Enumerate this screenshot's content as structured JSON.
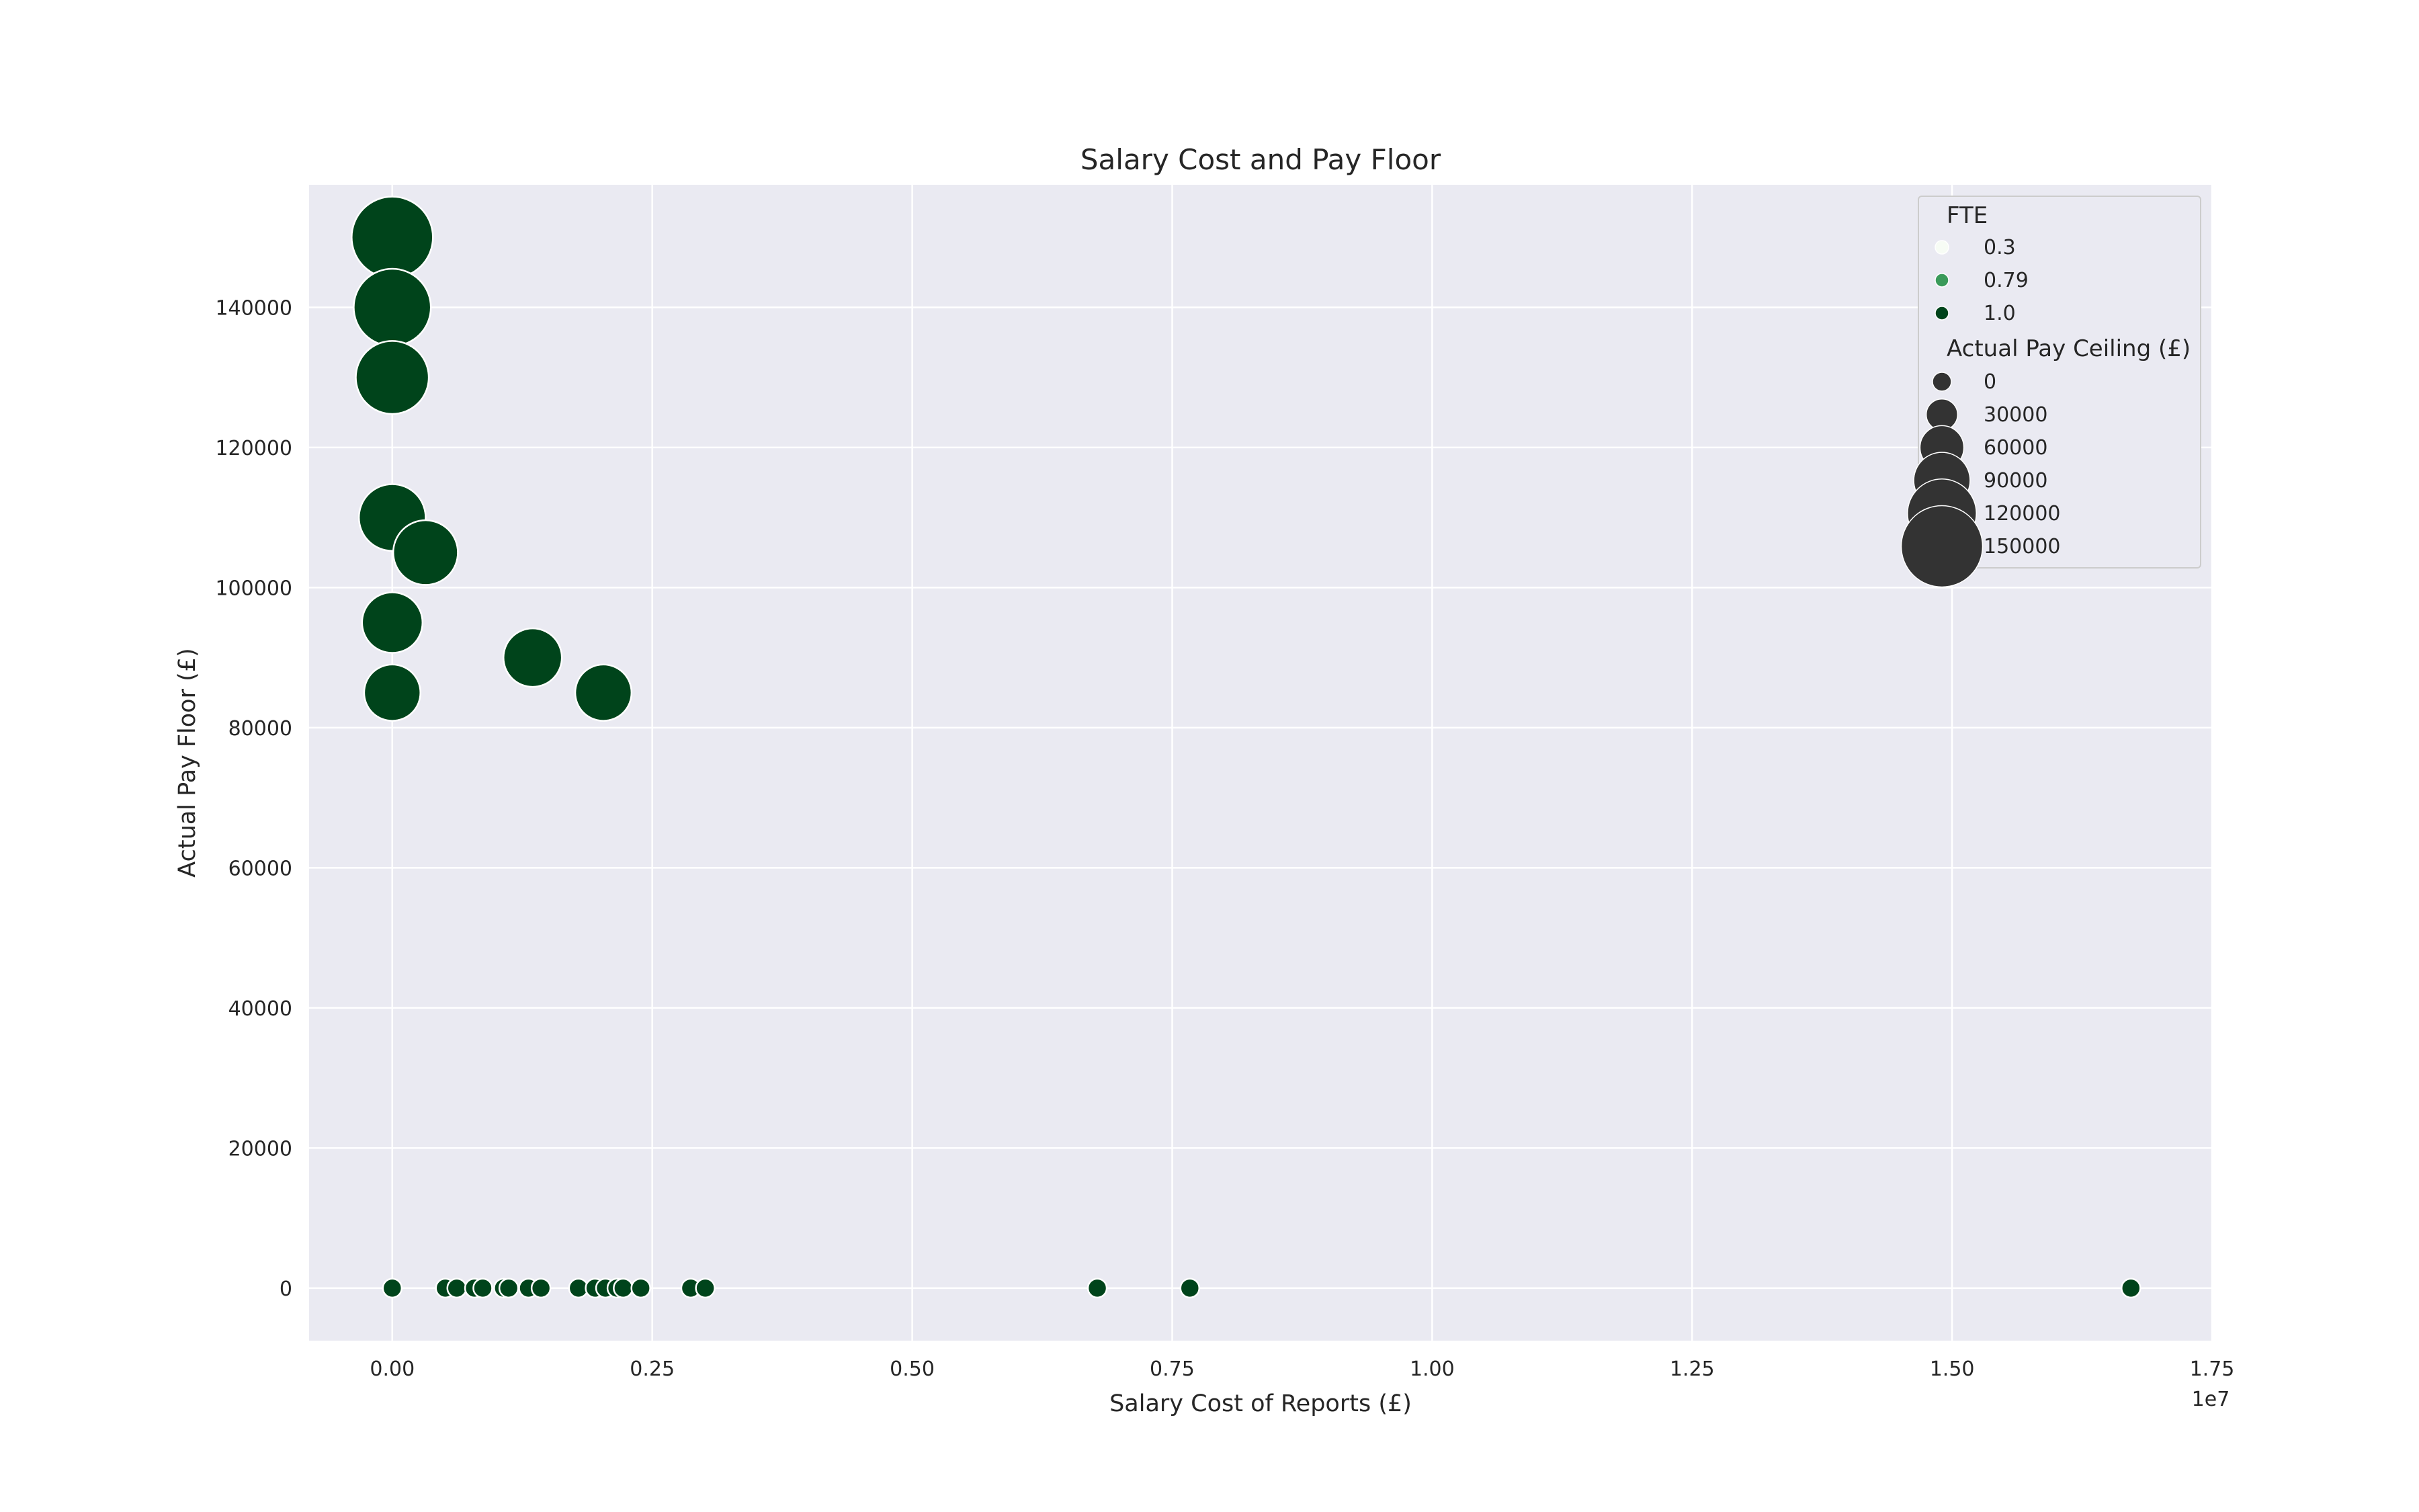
{
  "chart_data": {
    "type": "scatter",
    "title": "Salary Cost and Pay Floor",
    "xlabel": "Salary Cost of Reports (£)",
    "ylabel": "Actual Pay Floor (£)",
    "x_offset_label": "1e7",
    "xlim": [
      -800000,
      17500000
    ],
    "ylim": [
      -7500,
      157500
    ],
    "x_ticks": [
      0,
      2500000,
      5000000,
      7500000,
      10000000,
      12500000,
      15000000,
      17500000
    ],
    "x_tick_labels": [
      "0.00",
      "0.25",
      "0.50",
      "0.75",
      "1.00",
      "1.25",
      "1.50",
      "1.75"
    ],
    "y_ticks": [
      0,
      20000,
      40000,
      60000,
      80000,
      100000,
      120000,
      140000
    ],
    "y_tick_labels": [
      "0",
      "20000",
      "40000",
      "60000",
      "80000",
      "100000",
      "120000",
      "140000"
    ],
    "grid": true,
    "background": "#eaeaf2",
    "point_color": "#00441b",
    "legend": {
      "placement": "top-right",
      "hue_title": "FTE",
      "hue_entries": [
        {
          "label": "0.3",
          "color": "#f7fcf5"
        },
        {
          "label": "0.79",
          "color": "#3a9a5a"
        },
        {
          "label": "1.0",
          "color": "#00441b"
        }
      ],
      "size_title": "Actual Pay Ceiling (£)",
      "size_entries": [
        {
          "label": "0",
          "value": 0
        },
        {
          "label": "30000",
          "value": 30000
        },
        {
          "label": "60000",
          "value": 60000
        },
        {
          "label": "90000",
          "value": 90000
        },
        {
          "label": "120000",
          "value": 120000
        },
        {
          "label": "150000",
          "value": 150000
        }
      ],
      "size_color": "#333333"
    },
    "points": [
      {
        "x": 0,
        "y": 150000,
        "ceiling": 150000,
        "fte": 1.0
      },
      {
        "x": 0,
        "y": 140000,
        "ceiling": 140000,
        "fte": 1.0
      },
      {
        "x": 0,
        "y": 130000,
        "ceiling": 130000,
        "fte": 1.0
      },
      {
        "x": 0,
        "y": 110000,
        "ceiling": 115000,
        "fte": 1.0
      },
      {
        "x": 320000,
        "y": 105000,
        "ceiling": 110000,
        "fte": 1.0
      },
      {
        "x": 0,
        "y": 95000,
        "ceiling": 100000,
        "fte": 1.0
      },
      {
        "x": 1350000,
        "y": 90000,
        "ceiling": 95000,
        "fte": 1.0
      },
      {
        "x": 0,
        "y": 85000,
        "ceiling": 90000,
        "fte": 1.0
      },
      {
        "x": 2030000,
        "y": 85000,
        "ceiling": 90000,
        "fte": 1.0
      },
      {
        "x": 0,
        "y": 0,
        "ceiling": 0,
        "fte": 1.0
      },
      {
        "x": 510000,
        "y": 0,
        "ceiling": 0,
        "fte": 1.0
      },
      {
        "x": 620000,
        "y": 0,
        "ceiling": 0,
        "fte": 1.0
      },
      {
        "x": 790000,
        "y": 0,
        "ceiling": 0,
        "fte": 1.0
      },
      {
        "x": 870000,
        "y": 0,
        "ceiling": 0,
        "fte": 1.0
      },
      {
        "x": 1070000,
        "y": 0,
        "ceiling": 0,
        "fte": 1.0
      },
      {
        "x": 1120000,
        "y": 0,
        "ceiling": 0,
        "fte": 1.0
      },
      {
        "x": 1310000,
        "y": 0,
        "ceiling": 0,
        "fte": 1.0
      },
      {
        "x": 1430000,
        "y": 0,
        "ceiling": 0,
        "fte": 1.0
      },
      {
        "x": 1790000,
        "y": 0,
        "ceiling": 0,
        "fte": 1.0
      },
      {
        "x": 1950000,
        "y": 0,
        "ceiling": 0,
        "fte": 1.0
      },
      {
        "x": 2050000,
        "y": 0,
        "ceiling": 0,
        "fte": 1.0
      },
      {
        "x": 2160000,
        "y": 0,
        "ceiling": 0,
        "fte": 1.0
      },
      {
        "x": 2220000,
        "y": 0,
        "ceiling": 0,
        "fte": 1.0
      },
      {
        "x": 2390000,
        "y": 0,
        "ceiling": 0,
        "fte": 1.0
      },
      {
        "x": 2870000,
        "y": 0,
        "ceiling": 0,
        "fte": 1.0
      },
      {
        "x": 3010000,
        "y": 0,
        "ceiling": 0,
        "fte": 1.0
      },
      {
        "x": 6780000,
        "y": 0,
        "ceiling": 0,
        "fte": 1.0
      },
      {
        "x": 7670000,
        "y": 0,
        "ceiling": 0,
        "fte": 1.0
      },
      {
        "x": 16720000,
        "y": 0,
        "ceiling": 0,
        "fte": 1.0
      }
    ]
  }
}
